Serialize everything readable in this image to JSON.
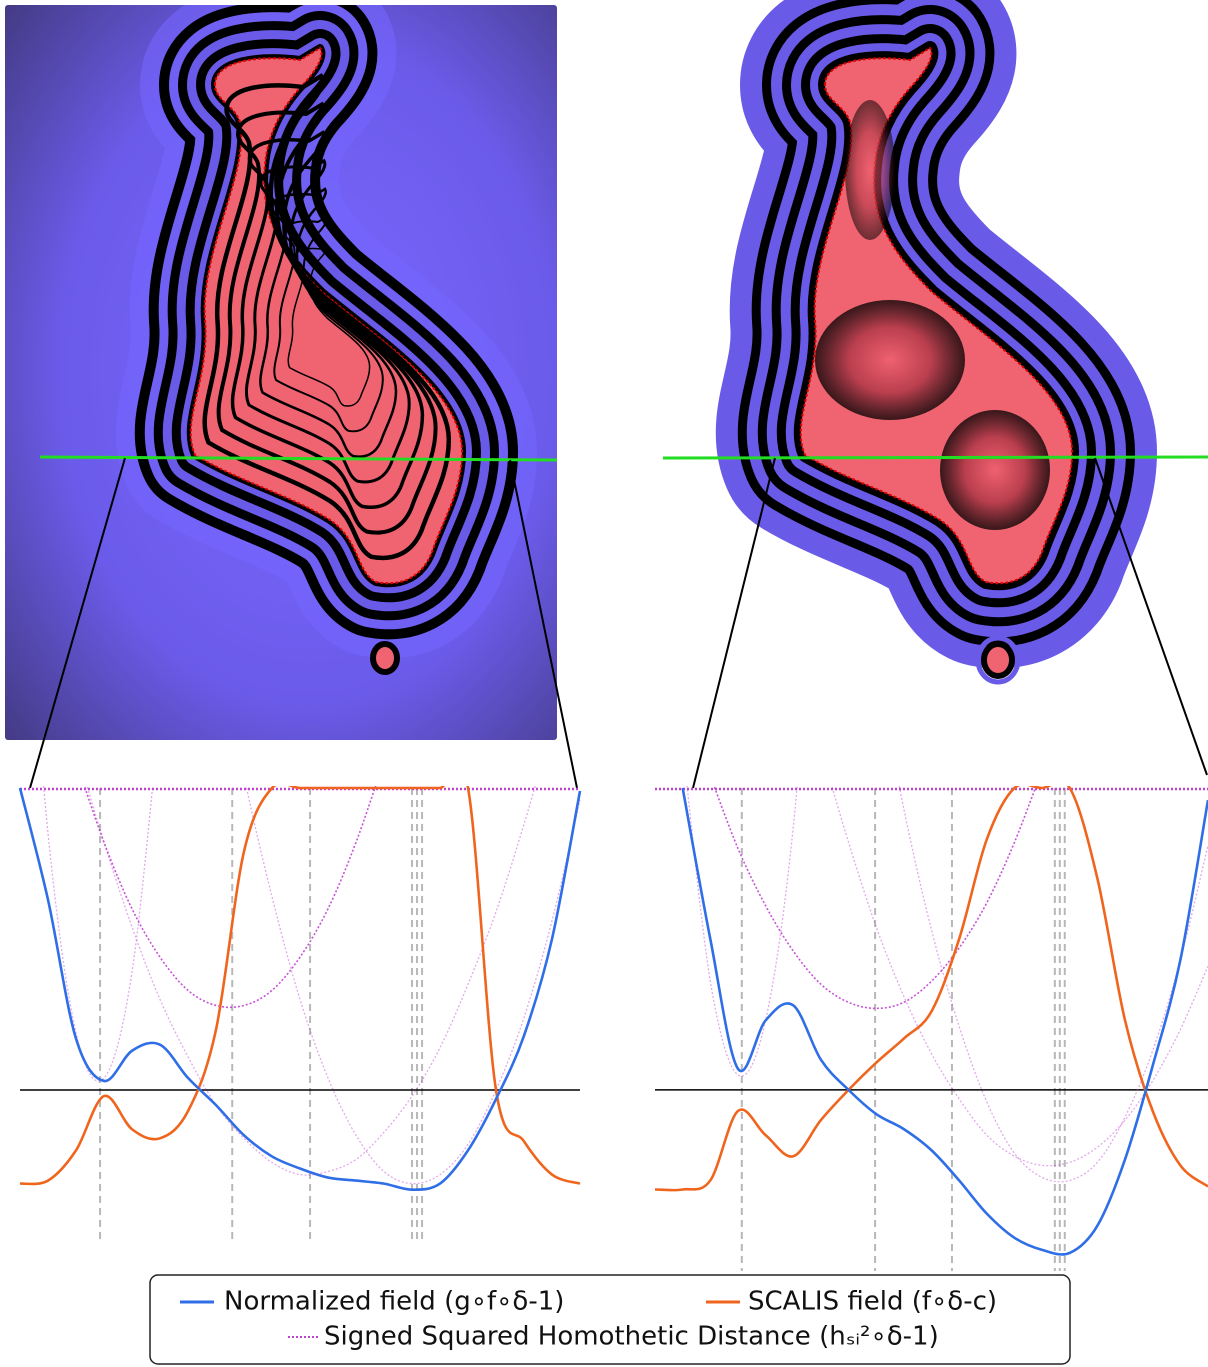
{
  "chart_data": [
    {
      "type": "line",
      "x": [
        0,
        5,
        10,
        15,
        20,
        25,
        30,
        35,
        40,
        45,
        50,
        55,
        60,
        65,
        70,
        75,
        80,
        85,
        90,
        95,
        100
      ],
      "xlim": [
        0,
        100
      ],
      "ylim": [
        -0.5,
        1
      ],
      "markers": [
        14.3,
        37.9,
        51.8,
        70,
        70.9,
        71.8
      ],
      "series": [
        {
          "name": "Normalized field (g∘f∘δ-1)",
          "color": "#2f6ee6",
          "values": [
            1.0,
            0.63,
            0.17,
            0.03,
            0.13,
            0.15,
            0.04,
            -0.05,
            -0.15,
            -0.22,
            -0.26,
            -0.29,
            -0.3,
            -0.31,
            -0.33,
            -0.31,
            -0.2,
            -0.03,
            0.18,
            0.5,
            0.99
          ]
        },
        {
          "name": "SCALIS field (f∘δ-c)",
          "color": "#f0651e",
          "values": [
            -0.31,
            -0.3,
            -0.2,
            -0.02,
            -0.13,
            -0.16,
            -0.07,
            0.2,
            0.79,
            1,
            1,
            1,
            1,
            1,
            1,
            1,
            1,
            0.0,
            -0.17,
            -0.28,
            -0.31
          ]
        },
        {
          "name": "Signed Squared Homothetic Distance (hₛᵢ²∘δ-1)",
          "color": "#c23fd4",
          "curves": [
            [
              null,
              null,
              1.09,
              0.82,
              0.6,
              0.44,
              0.33,
              0.28,
              0.28,
              0.33,
              0.44,
              0.6,
              0.82,
              1.09,
              null,
              null,
              null,
              null,
              null,
              null,
              null
            ],
            [
              2.01,
              0.85,
              0.19,
              0.04,
              0.39,
              1.25,
              null,
              null,
              null,
              null,
              null,
              null,
              null,
              null,
              null,
              null,
              null,
              null,
              null,
              null,
              null
            ],
            [
              null,
              null,
              null,
              null,
              null,
              null,
              null,
              1.52,
              1.04,
              0.64,
              0.3,
              0.04,
              -0.15,
              -0.27,
              -0.31,
              -0.28,
              -0.18,
              0.0,
              0.24,
              0.56,
              0.96
            ],
            [
              null,
              null,
              1.13,
              0.82,
              0.54,
              0.3,
              0.11,
              -0.05,
              -0.16,
              -0.24,
              -0.28,
              -0.27,
              -0.23,
              -0.14,
              -0.02,
              0.14,
              0.35,
              0.59,
              0.88,
              1.2,
              null
            ]
          ]
        }
      ]
    },
    {
      "type": "line",
      "x": [
        0,
        5,
        10,
        15,
        20,
        25,
        30,
        35,
        40,
        45,
        50,
        55,
        60,
        65,
        70,
        75,
        80,
        85,
        90,
        95,
        100
      ],
      "xlim": [
        0,
        100
      ],
      "ylim": [
        -0.6,
        1
      ],
      "markers": [
        15.7,
        39.8,
        53.7,
        72.3,
        73.2,
        74.1
      ],
      "series": [
        {
          "color": "#2f6ee6",
          "values": [
            null,
            1.0,
            0.5,
            0.07,
            0.23,
            0.28,
            0.1,
            0,
            -0.08,
            -0.13,
            -0.2,
            -0.3,
            -0.41,
            -0.49,
            -0.53,
            -0.54,
            -0.45,
            -0.23,
            0.08,
            0.43,
            0.96
          ]
        },
        {
          "color": "#f0651e",
          "values": [
            -0.33,
            -0.33,
            -0.3,
            -0.07,
            -0.15,
            -0.22,
            -0.1,
            0,
            0.09,
            0.17,
            0.26,
            0.5,
            0.83,
            1.0,
            1.0,
            1.0,
            0.7,
            0.23,
            -0.07,
            -0.25,
            -0.32
          ]
        },
        {
          "color": "#c23fd4",
          "curves": [
            [
              null,
              null,
              1.04,
              0.8,
              0.61,
              0.46,
              0.35,
              0.29,
              0.27,
              0.29,
              0.36,
              0.47,
              0.62,
              0.82,
              1.06,
              null,
              null,
              null,
              null,
              null,
              null
            ],
            [
              null,
              1.14,
              0.36,
              0.05,
              0.23,
              0.87,
              1.99,
              null,
              null,
              null,
              null,
              null,
              null,
              null,
              null,
              null,
              null,
              null,
              null,
              null,
              null
            ],
            [
              null,
              null,
              null,
              null,
              null,
              null,
              null,
              null,
              1.41,
              0.93,
              0.53,
              0.21,
              -0.04,
              -0.21,
              -0.29,
              -0.3,
              -0.24,
              -0.09,
              0.13,
              0.43,
              0.81
            ],
            [
              null,
              null,
              null,
              null,
              null,
              null,
              1.13,
              0.82,
              0.54,
              0.31,
              0.12,
              -0.03,
              -0.15,
              -0.22,
              -0.25,
              -0.24,
              -0.19,
              -0.1,
              0.03,
              0.2,
              0.41
            ]
          ]
        }
      ]
    }
  ]
}
